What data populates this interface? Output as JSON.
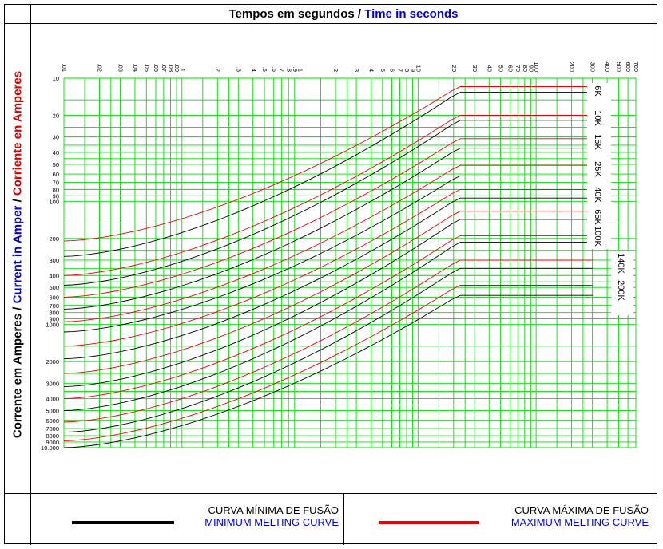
{
  "header": {
    "title_pt": "Tempos em segundos",
    "title_sep": " / ",
    "title_en": "Time in seconds"
  },
  "y_axis_label": {
    "pt": "Corrente em Amperes",
    "sep1": " / ",
    "en": "Current in Amper",
    "sep2": " / ",
    "es": "Corriente en Amperes"
  },
  "legend": {
    "min_pt": "CURVA MÍNIMA DE FUSÃO",
    "min_en": "MINIMUM MELTING CURVE",
    "min_color": "#000000",
    "max_pt": "CURVA MÁXIMA DE FUSÃO",
    "max_en": "MAXIMUM MELTING CURVE",
    "max_color": "#ee0000"
  },
  "chart_data": {
    "type": "line",
    "x_scale": "log",
    "y_scale": "log",
    "x_axis": "time (s)",
    "y_axis": "current (A)",
    "xlim": [
      0.01,
      700
    ],
    "ylim": [
      10,
      10000
    ],
    "y_inverted": true,
    "grid": true,
    "grid_color": "#00dd00",
    "x_tick_labels": [
      ".01",
      ".02",
      ".03",
      ".04",
      ".05",
      ".06",
      ".07",
      ".08",
      ".09",
      ".1",
      ".2",
      ".3",
      ".4",
      ".5",
      ".6",
      ".7",
      ".8",
      ".9",
      "1",
      "2",
      "3",
      "4",
      "5",
      "6",
      "7",
      "8",
      "9",
      "10",
      "20",
      "30",
      "40",
      "50",
      "60",
      "70",
      "80",
      "90",
      "100",
      "200",
      "300",
      "400",
      "500",
      "600",
      "700"
    ],
    "x_tick_values": [
      0.01,
      0.02,
      0.03,
      0.04,
      0.05,
      0.06,
      0.07,
      0.08,
      0.09,
      0.1,
      0.2,
      0.3,
      0.4,
      0.5,
      0.6,
      0.7,
      0.8,
      0.9,
      1,
      2,
      3,
      4,
      5,
      6,
      7,
      8,
      9,
      10,
      20,
      30,
      40,
      50,
      60,
      70,
      80,
      90,
      100,
      200,
      300,
      400,
      500,
      600,
      700
    ],
    "y_tick_labels": [
      "10",
      "20",
      "30",
      "40",
      "50",
      "60",
      "70",
      "80",
      "90",
      "100",
      "200",
      "300",
      "400",
      "500",
      "600",
      "700",
      "800",
      "900",
      "1000",
      "2000",
      "3000",
      "4000",
      "5000",
      "6000",
      "7000",
      "8000",
      "9000",
      "10.000"
    ],
    "y_tick_values": [
      10,
      20,
      30,
      40,
      50,
      60,
      70,
      80,
      90,
      100,
      200,
      300,
      400,
      500,
      600,
      700,
      800,
      900,
      1000,
      2000,
      3000,
      4000,
      5000,
      6000,
      7000,
      8000,
      9000,
      10000
    ],
    "series": [
      {
        "name": "6K",
        "min": {
          "a_start": 280,
          "a_end": 13
        },
        "max": {
          "a_start": 210,
          "a_end": 11.7
        }
      },
      {
        "name": "10K",
        "min": {
          "a_start": 480,
          "a_end": 22
        },
        "max": {
          "a_start": 400,
          "a_end": 20
        }
      },
      {
        "name": "15K",
        "min": {
          "a_start": 750,
          "a_end": 37
        },
        "max": {
          "a_start": 600,
          "a_end": 31
        }
      },
      {
        "name": "25K",
        "min": {
          "a_start": 1150,
          "a_end": 62
        },
        "max": {
          "a_start": 950,
          "a_end": 51
        }
      },
      {
        "name": "40K",
        "min": {
          "a_start": 1900,
          "a_end": 94
        },
        "max": {
          "a_start": 1500,
          "a_end": 80
        }
      },
      {
        "name": "65K",
        "min": {
          "a_start": 3200,
          "a_end": 140
        },
        "max": {
          "a_start": 2500,
          "a_end": 120
        }
      },
      {
        "name": "100K",
        "min": {
          "a_start": 5000,
          "a_end": 215
        },
        "max": {
          "a_start": 4000,
          "a_end": 190
        }
      },
      {
        "name": "140K",
        "min": {
          "a_start": 7500,
          "a_end": 350
        },
        "max": {
          "a_start": 6200,
          "a_end": 300
        }
      },
      {
        "name": "200K",
        "min": {
          "a_start": 10000,
          "a_end": 580
        },
        "max": {
          "a_start": 8800,
          "a_end": 480
        }
      }
    ]
  }
}
